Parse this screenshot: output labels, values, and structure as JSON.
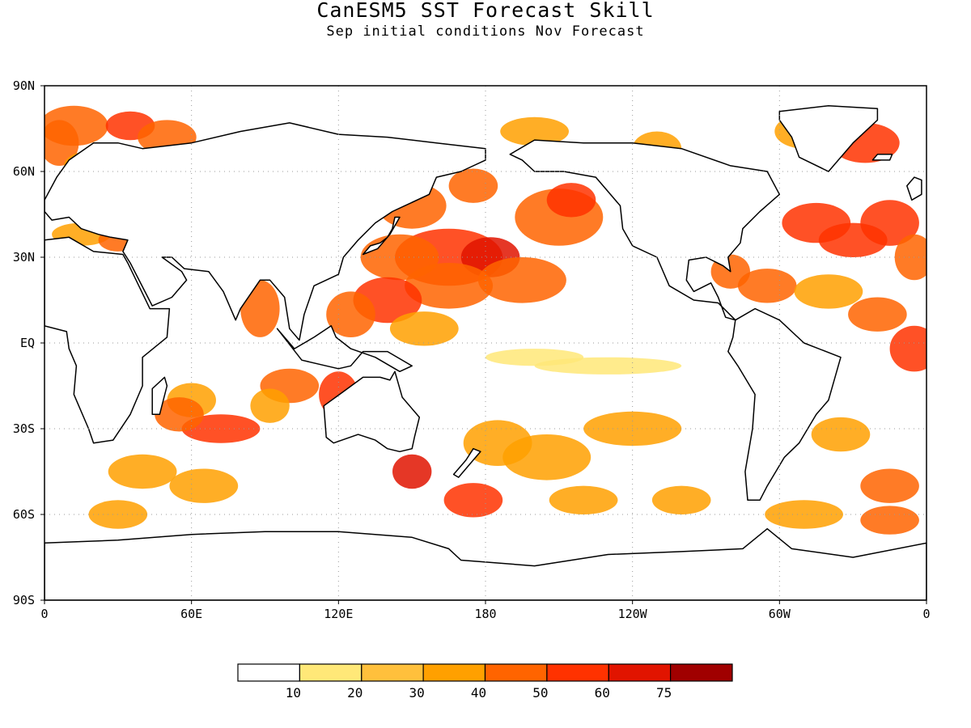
{
  "title": "CanESM5 SST Forecast Skill",
  "subtitle": "Sep initial conditions  Nov Forecast",
  "map": {
    "projection": "equirectangular",
    "lon_range": [
      0,
      360
    ],
    "lat_range": [
      -90,
      90
    ],
    "grid": "dotted",
    "lat_ticks": [
      {
        "lat": 90,
        "label": "90N"
      },
      {
        "lat": 60,
        "label": "60N"
      },
      {
        "lat": 30,
        "label": "30N"
      },
      {
        "lat": 0,
        "label": "EQ"
      },
      {
        "lat": -30,
        "label": "30S"
      },
      {
        "lat": -60,
        "label": "60S"
      },
      {
        "lat": -90,
        "label": "90S"
      }
    ],
    "lon_ticks": [
      {
        "lon": 0,
        "label": "0"
      },
      {
        "lon": 60,
        "label": "60E"
      },
      {
        "lon": 120,
        "label": "120E"
      },
      {
        "lon": 180,
        "label": "180"
      },
      {
        "lon": 240,
        "label": "120W"
      },
      {
        "lon": 300,
        "label": "60W"
      },
      {
        "lon": 360,
        "label": "0"
      }
    ]
  },
  "colorbar": {
    "colors": [
      "#ffffff",
      "#ffe878",
      "#ffc03c",
      "#ffa000",
      "#ff6400",
      "#ff3200",
      "#e11400",
      "#a00000"
    ],
    "labels": [
      "10",
      "20",
      "30",
      "40",
      "50",
      "60",
      "75"
    ]
  }
}
